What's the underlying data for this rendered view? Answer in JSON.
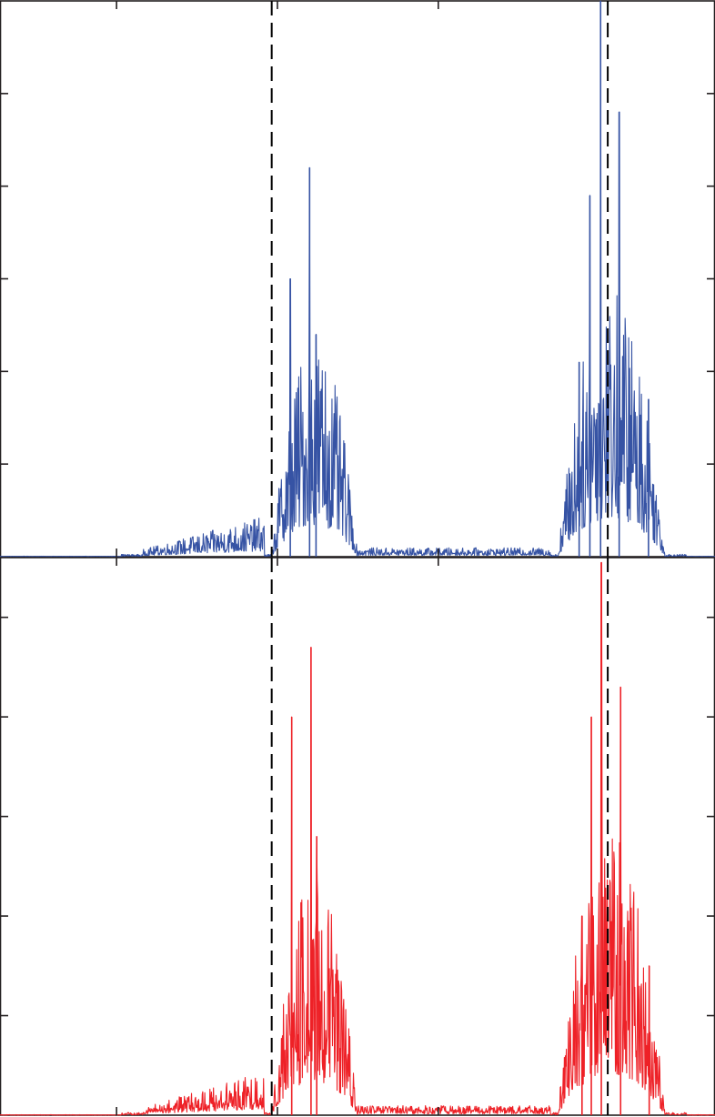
{
  "chart_data": [
    {
      "type": "line",
      "title": "",
      "xlabel": "",
      "ylabel": "",
      "xlim": [
        0,
        100
      ],
      "ylim": [
        0,
        6
      ],
      "color": "#3653a4",
      "grid": false,
      "dashed_vlines_x": [
        38,
        85
      ],
      "x_ticks": [
        16.3,
        38.8,
        61.3
      ],
      "y_ticks": [
        1,
        2,
        3,
        4,
        5
      ],
      "peaks": [
        {
          "x": 40.6,
          "y": 3.0
        },
        {
          "x": 43.3,
          "y": 4.2
        },
        {
          "x": 44.2,
          "y": 2.4
        },
        {
          "x": 81.0,
          "y": 2.1
        },
        {
          "x": 82.5,
          "y": 3.9
        },
        {
          "x": 84.0,
          "y": 6.0
        },
        {
          "x": 86.6,
          "y": 4.8
        },
        {
          "x": 90.7,
          "y": 1.7
        }
      ]
    },
    {
      "type": "line",
      "title": "",
      "xlabel": "",
      "ylabel": "",
      "xlim": [
        0,
        100
      ],
      "ylim": [
        0,
        5.6
      ],
      "color": "#ee2127",
      "grid": false,
      "dashed_vlines_x": [
        38,
        85
      ],
      "x_ticks": [
        16.3,
        38.8,
        61.3
      ],
      "y_ticks": [
        1,
        2,
        3,
        4,
        5
      ],
      "peaks": [
        {
          "x": 40.8,
          "y": 4.0
        },
        {
          "x": 43.5,
          "y": 4.7
        },
        {
          "x": 44.3,
          "y": 2.8
        },
        {
          "x": 81.4,
          "y": 2.0
        },
        {
          "x": 82.7,
          "y": 4.0
        },
        {
          "x": 84.1,
          "y": 5.55
        },
        {
          "x": 86.8,
          "y": 4.3
        },
        {
          "x": 90.8,
          "y": 1.5
        }
      ]
    }
  ]
}
